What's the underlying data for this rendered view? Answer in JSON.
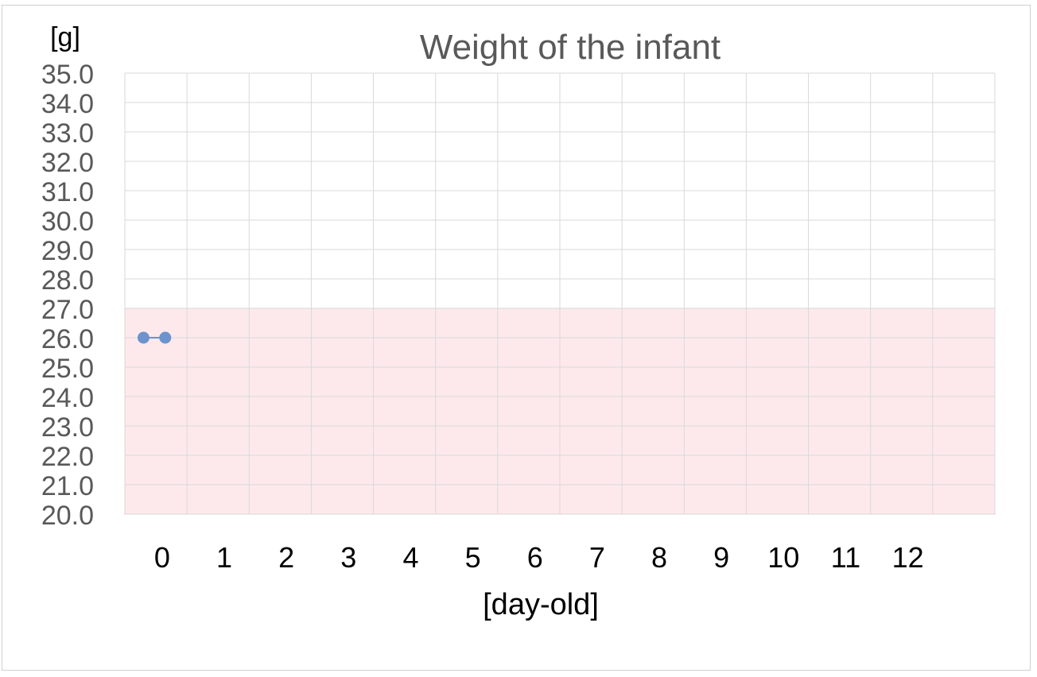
{
  "chart_data": {
    "type": "line",
    "title": "Weight of the infant",
    "ylabel": "[g]",
    "xlabel": "[day-old]",
    "ylim": [
      20.0,
      35.0
    ],
    "y_ticks": [
      "20.0",
      "21.0",
      "22.0",
      "23.0",
      "24.0",
      "25.0",
      "26.0",
      "27.0",
      "28.0",
      "29.0",
      "30.0",
      "31.0",
      "32.0",
      "33.0",
      "34.0",
      "35.0"
    ],
    "x_ticks": [
      "0",
      "1",
      "2",
      "3",
      "4",
      "5",
      "6",
      "7",
      "8",
      "9",
      "10",
      "11",
      "12"
    ],
    "xlim": [
      0,
      14
    ],
    "grid": true,
    "reference_band": {
      "y_from": 20.0,
      "y_to": 27.0,
      "fill": "#fde9eb",
      "stroke": "#e04050"
    },
    "series": [
      {
        "points": [
          {
            "x": 0.3,
            "y": 26.0
          },
          {
            "x": 0.65,
            "y": 26.0
          }
        ],
        "color": "#6c93cd"
      }
    ],
    "colors": {
      "title": "#595959",
      "tick": "#595959",
      "grid": "#d9d9d9",
      "xtick": "#000000"
    }
  }
}
